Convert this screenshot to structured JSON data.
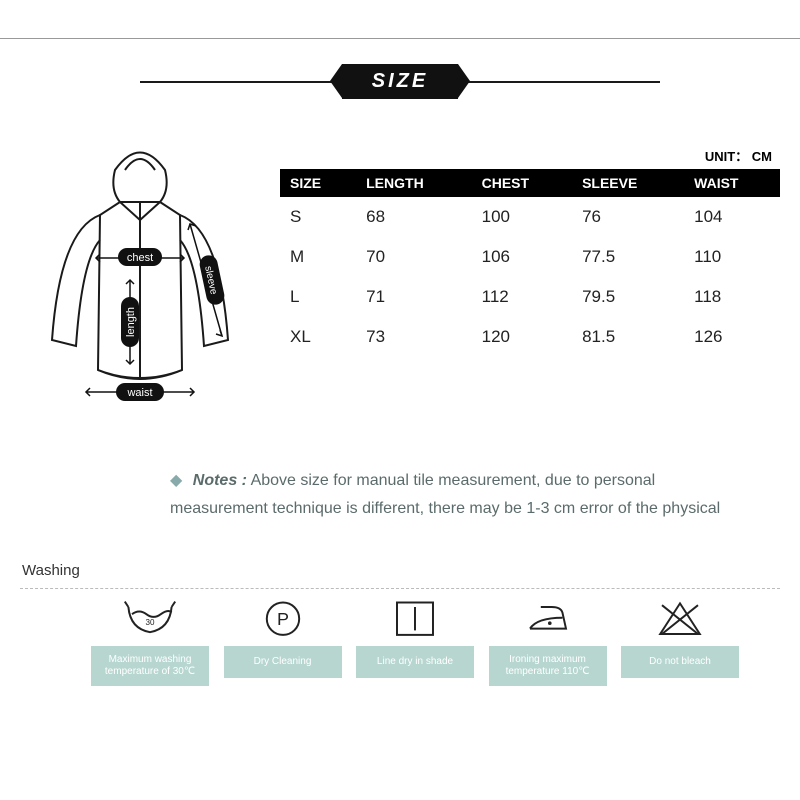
{
  "banner": {
    "label": "SIZE"
  },
  "unit_label": "UNIT： CM",
  "table": {
    "columns": [
      "SIZE",
      "LENGTH",
      "CHEST",
      "SLEEVE",
      "WAIST"
    ],
    "rows": [
      [
        "S",
        "68",
        "100",
        "76",
        "104"
      ],
      [
        "M",
        "70",
        "106",
        "77.5",
        "110"
      ],
      [
        "L",
        "71",
        "112",
        "79.5",
        "118"
      ],
      [
        "XL",
        "73",
        "120",
        "81.5",
        "126"
      ]
    ],
    "header_bg": "#000000",
    "header_color": "#ffffff",
    "cell_color": "#222222"
  },
  "diagram": {
    "labels": {
      "chest": "chest",
      "length": "length",
      "sleeve": "sleeve",
      "waist": "waist"
    },
    "stroke": "#1a1a1a",
    "label_bg": "#111111",
    "label_color": "#ffffff"
  },
  "notes": {
    "bullet": "◆",
    "label": "Notes :",
    "text1": "Above size for manual tile measurement, due to personal",
    "text2": "measurement technique is different, there may be 1-3 cm error of the physical",
    "color": "#5b6b6b"
  },
  "washing_label": "Washing",
  "care": {
    "caption_bg": "#b7d6d0",
    "caption_color": "#ffffff",
    "items": [
      {
        "icon": "wash",
        "caption": "Maximum washing temperature of 30℃"
      },
      {
        "icon": "dryclean",
        "caption": "Dry Cleaning"
      },
      {
        "icon": "linedry",
        "caption": "Line dry in shade"
      },
      {
        "icon": "iron",
        "caption": "Ironing maximum temperature 110℃"
      },
      {
        "icon": "nobleach",
        "caption": "Do not bleach"
      }
    ]
  },
  "watermark": ""
}
